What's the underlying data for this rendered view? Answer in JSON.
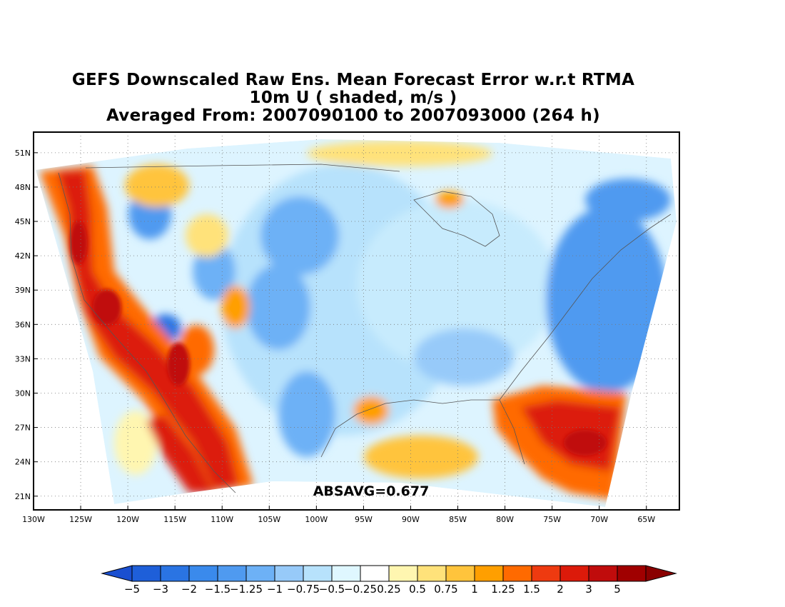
{
  "title": {
    "line1": "GEFS Downscaled Raw Ens. Mean Forecast Error w.r.t RTMA",
    "line2": "10m U ( shaded, m/s )",
    "line3": "Averaged From: 2007090100 to 2007093000 (264 h)"
  },
  "map": {
    "lon_range": [
      -130,
      -61.5
    ],
    "lat_range": [
      19.8,
      52.8
    ],
    "lon_ticks": [
      "130W",
      "125W",
      "120W",
      "115W",
      "110W",
      "105W",
      "100W",
      "95W",
      "90W",
      "85W",
      "80W",
      "75W",
      "70W",
      "65W"
    ],
    "lat_ticks": [
      "21N",
      "24N",
      "27N",
      "30N",
      "33N",
      "36N",
      "39N",
      "42N",
      "45N",
      "48N",
      "51N"
    ],
    "grid": "dotted",
    "annotation": "ABSAVG=0.677"
  },
  "colorbar": {
    "labels": [
      "−5",
      "−3",
      "−2",
      "−1.5",
      "−1.25",
      "−1",
      "−0.75",
      "−0.5",
      "−0.25",
      "0.25",
      "0.5",
      "0.75",
      "1",
      "1.25",
      "1.5",
      "2",
      "3",
      "5"
    ],
    "colors": [
      "#1e5fd9",
      "#2a74e3",
      "#3a8aec",
      "#4f9af0",
      "#6db1f6",
      "#97caf9",
      "#b7e2fc",
      "#dff7ff",
      "#ffffff",
      "#fff6b0",
      "#ffe27a",
      "#ffc43c",
      "#ff9f00",
      "#ff6a00",
      "#ee3a10",
      "#dc1a0a",
      "#c00c0c",
      "#a00000"
    ],
    "under_color": "#1a4fd0",
    "over_color": "#8a0000"
  },
  "regions": [
    {
      "name": "pacific-nw-coast",
      "value": 3,
      "color": "#dc1a0a"
    },
    {
      "name": "california-coast",
      "value": 3,
      "color": "#dc1a0a"
    },
    {
      "name": "baja-coast",
      "value": 2,
      "color": "#ee3a10"
    },
    {
      "name": "great-plains",
      "value": -0.5,
      "color": "#b7e2fc"
    },
    {
      "name": "northeast",
      "value": -1.5,
      "color": "#4f9af0"
    },
    {
      "name": "atlantic-south",
      "value": 2,
      "color": "#ee3a10"
    },
    {
      "name": "gulf-of-mexico",
      "value": 0.75,
      "color": "#ffc43c"
    }
  ]
}
